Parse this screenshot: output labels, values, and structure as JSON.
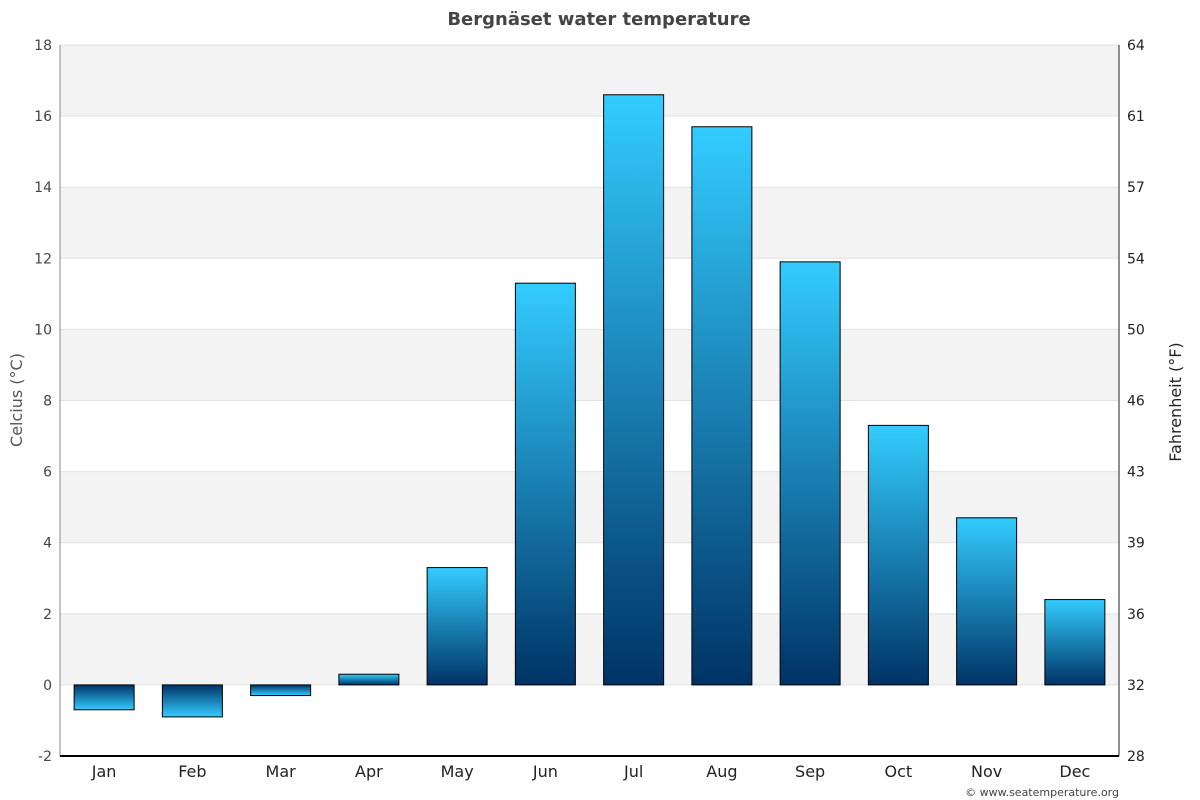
{
  "chart_data": {
    "type": "bar",
    "title": "Bergnäset water temperature",
    "ylabel": "Celcius (°C)",
    "ylabel_right": "Fahrenheit (°F)",
    "categories": [
      "Jan",
      "Feb",
      "Mar",
      "Apr",
      "May",
      "Jun",
      "Jul",
      "Aug",
      "Sep",
      "Oct",
      "Nov",
      "Dec"
    ],
    "values": [
      -0.7,
      -0.9,
      -0.3,
      0.3,
      3.3,
      11.3,
      16.6,
      15.7,
      11.9,
      7.3,
      4.7,
      2.4
    ],
    "ylim": [
      -2,
      18
    ],
    "yticks": [
      -2,
      0,
      2,
      4,
      6,
      8,
      10,
      12,
      14,
      16,
      18
    ],
    "yticks_right": [
      "28",
      "32",
      "36",
      "39",
      "43",
      "46",
      "50",
      "54",
      "57",
      "61",
      "64"
    ],
    "grid": true,
    "colors": {
      "bar_light": "#33ccff",
      "bar_dark": "#003366",
      "band": "#f3f3f3"
    }
  },
  "footer": {
    "credit": "© www.seatemperature.org"
  }
}
